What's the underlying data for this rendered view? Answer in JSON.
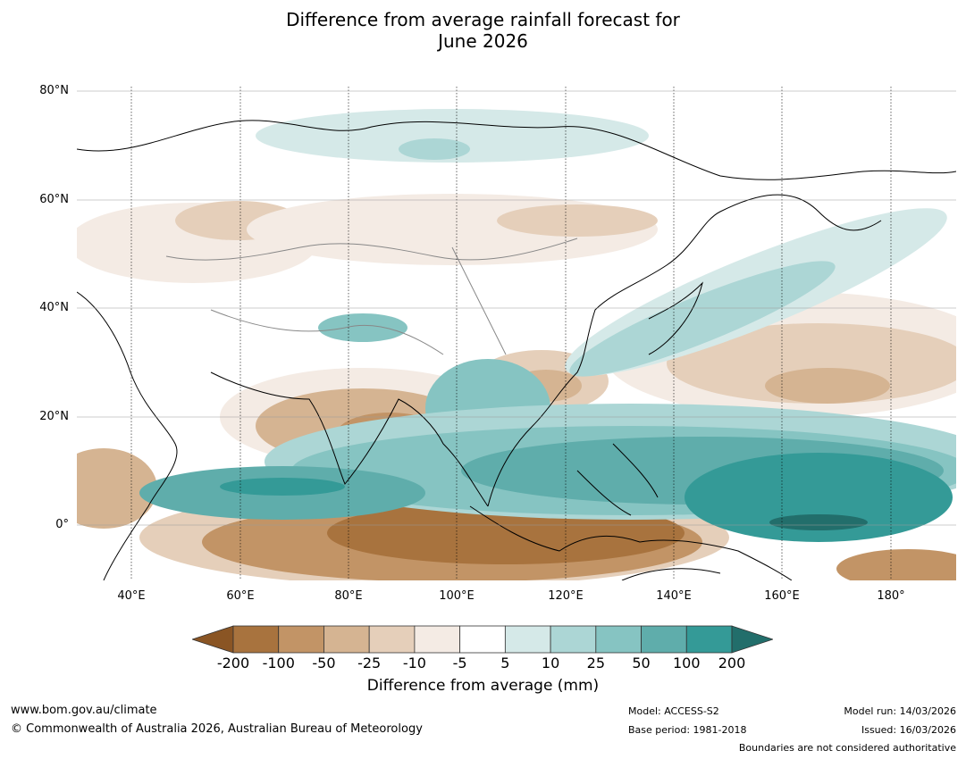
{
  "title": {
    "line1": "Difference from average rainfall forecast for",
    "line2": "June 2026"
  },
  "map": {
    "lat_labels": [
      "80°N",
      "60°N",
      "40°N",
      "20°N",
      "0°"
    ],
    "lon_labels": [
      "40°E",
      "60°E",
      "80°E",
      "100°E",
      "120°E",
      "140°E",
      "160°E",
      "180°"
    ],
    "region": "Asia and western Pacific",
    "extent": {
      "lon": [
        30,
        192
      ],
      "lat": [
        -10,
        81
      ]
    }
  },
  "legend": {
    "ticks": [
      "-200",
      "-100",
      "-50",
      "-25",
      "-10",
      "-5",
      "5",
      "10",
      "25",
      "50",
      "100",
      "200"
    ],
    "colors": [
      "#8a5524",
      "#a8733e",
      "#c29466",
      "#d5b492",
      "#e5cfba",
      "#f4ebe4",
      "#ffffff",
      "#d5e9e8",
      "#acd6d5",
      "#86c4c2",
      "#5fadab",
      "#349a97",
      "#226e6b"
    ],
    "label": "Difference from average (mm)"
  },
  "footer": {
    "website": "www.bom.gov.au/climate",
    "copyright": "© Commonwealth of Australia 2026, Australian Bureau of Meteorology",
    "model": "Model: ACCESS-S2",
    "base_period": "Base period: 1981-2018",
    "model_run": "Model run: 14/03/2026",
    "issued": "Issued: 16/03/2026",
    "disclaimer": "Boundaries are not considered authoritative"
  }
}
